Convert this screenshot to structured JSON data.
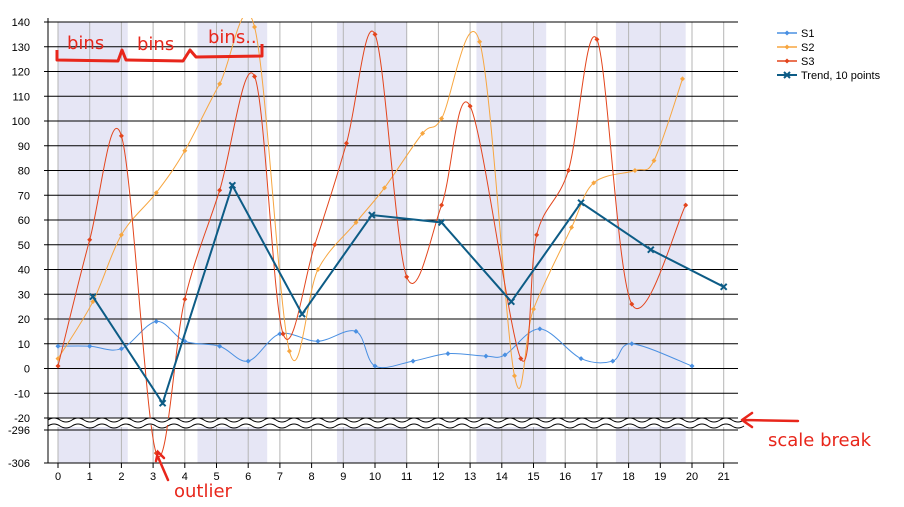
{
  "chart_data": {
    "type": "line",
    "x_ticks": [
      "0",
      "1",
      "2",
      "3",
      "4",
      "5",
      "6",
      "7",
      "8",
      "9",
      "10",
      "11",
      "12",
      "13",
      "14",
      "15",
      "16",
      "17",
      "18",
      "19",
      "20",
      "21"
    ],
    "y_ticks_upper": [
      "140",
      "130",
      "120",
      "110",
      "100",
      "90",
      "80",
      "70",
      "60",
      "50",
      "40",
      "30",
      "20",
      "10",
      "0",
      "-10",
      "-20"
    ],
    "y_ticks_lower": [
      "-296",
      "-306"
    ],
    "ylim_upper": [
      -20,
      140
    ],
    "ylim_lower": [
      -306,
      -296
    ],
    "scale_break": true,
    "grid": true,
    "legend_position": "top-right",
    "series": [
      {
        "name": "S1",
        "color": "#4a90e2",
        "smooth": true,
        "marker": "diamond",
        "points": [
          [
            0,
            9
          ],
          [
            1,
            9
          ],
          [
            2,
            8
          ],
          [
            3.1,
            19
          ],
          [
            4,
            11
          ],
          [
            5.1,
            9
          ],
          [
            6,
            3
          ],
          [
            7,
            14
          ],
          [
            8.2,
            11
          ],
          [
            9.4,
            15
          ],
          [
            10,
            1
          ],
          [
            11.2,
            3
          ],
          [
            12.3,
            6
          ],
          [
            13.5,
            5
          ],
          [
            14.1,
            5.5
          ],
          [
            15.2,
            16
          ],
          [
            16.5,
            4
          ],
          [
            17.5,
            3
          ],
          [
            18.1,
            10
          ],
          [
            20,
            1
          ]
        ]
      },
      {
        "name": "S2",
        "color": "#f7a640",
        "smooth": true,
        "marker": "diamond",
        "points": [
          [
            0,
            4
          ],
          [
            1.1,
            27
          ],
          [
            2,
            54
          ],
          [
            3.1,
            71
          ],
          [
            4,
            88
          ],
          [
            5.1,
            115
          ],
          [
            6.2,
            138
          ],
          [
            7.3,
            7
          ],
          [
            8.2,
            40
          ],
          [
            9.4,
            59
          ],
          [
            10.3,
            73
          ],
          [
            11.5,
            95
          ],
          [
            12.1,
            101
          ],
          [
            13.3,
            132
          ],
          [
            14.4,
            -3
          ],
          [
            15,
            24
          ],
          [
            16.2,
            57
          ],
          [
            16.9,
            75
          ],
          [
            18.2,
            80
          ],
          [
            18.8,
            84
          ],
          [
            19.7,
            117
          ]
        ]
      },
      {
        "name": "S3",
        "color": "#e3451c",
        "smooth": true,
        "marker": "diamond",
        "points": [
          [
            0,
            1
          ],
          [
            1,
            52
          ],
          [
            2,
            94
          ],
          [
            3.1,
            -303
          ],
          [
            4,
            28
          ],
          [
            5.1,
            72
          ],
          [
            6.2,
            118
          ],
          [
            7.1,
            14
          ],
          [
            8.1,
            50
          ],
          [
            9.1,
            91
          ],
          [
            10,
            135
          ],
          [
            11,
            37
          ],
          [
            12.1,
            66
          ],
          [
            13,
            106
          ],
          [
            14.6,
            4
          ],
          [
            15.1,
            54
          ],
          [
            16.1,
            80
          ],
          [
            17,
            133
          ],
          [
            18.1,
            26
          ],
          [
            19.8,
            66
          ]
        ]
      },
      {
        "name": "Trend, 10 points",
        "color": "#0d5c86",
        "smooth": false,
        "marker": "x",
        "points": [
          [
            1.1,
            29
          ],
          [
            3.3,
            -14
          ],
          [
            5.5,
            74
          ],
          [
            7.7,
            22
          ],
          [
            9.9,
            62
          ],
          [
            12.1,
            59
          ],
          [
            14.3,
            27
          ],
          [
            16.5,
            67
          ],
          [
            18.7,
            48
          ],
          [
            21,
            33
          ]
        ]
      }
    ],
    "bins": [
      [
        0,
        2.2
      ],
      [
        4.4,
        6.6
      ],
      [
        8.8,
        11
      ],
      [
        13.2,
        15.4
      ],
      [
        17.6,
        19.8
      ]
    ]
  },
  "annotations": {
    "bins_1": "bins",
    "bins_2": "bins",
    "bins_3": "bins..",
    "outlier": "outlier",
    "scale_break": "scale break"
  }
}
